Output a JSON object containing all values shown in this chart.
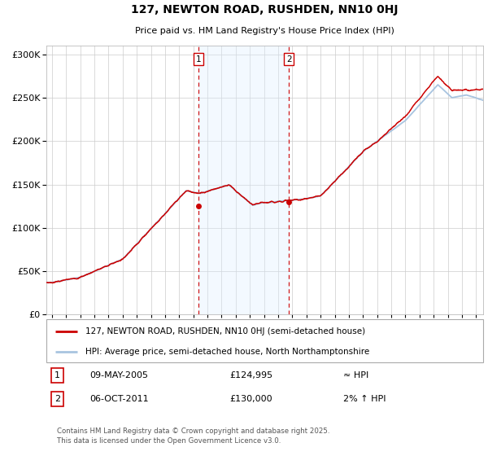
{
  "title": "127, NEWTON ROAD, RUSHDEN, NN10 0HJ",
  "subtitle": "Price paid vs. HM Land Registry's House Price Index (HPI)",
  "legend_line1": "127, NEWTON ROAD, RUSHDEN, NN10 0HJ (semi-detached house)",
  "legend_line2": "HPI: Average price, semi-detached house, North Northamptonshire",
  "sale1_date": "09-MAY-2005",
  "sale1_price": "£124,995",
  "sale1_vs_hpi": "≈ HPI",
  "sale2_date": "06-OCT-2011",
  "sale2_price": "£130,000",
  "sale2_vs_hpi": "2% ↑ HPI",
  "footer": "Contains HM Land Registry data © Crown copyright and database right 2025.\nThis data is licensed under the Open Government Licence v3.0.",
  "hpi_color": "#a8c4e0",
  "price_color": "#cc0000",
  "shade_color": "#ddeeff",
  "dashed_line_color": "#cc0000",
  "background_color": "#ffffff",
  "grid_color": "#cccccc",
  "ylim": [
    0,
    310000
  ],
  "sale1_x": 2005.35,
  "sale2_x": 2011.76,
  "marker1_y": 124995,
  "marker2_y": 130000,
  "xmin": 1994.6,
  "xmax": 2025.5
}
